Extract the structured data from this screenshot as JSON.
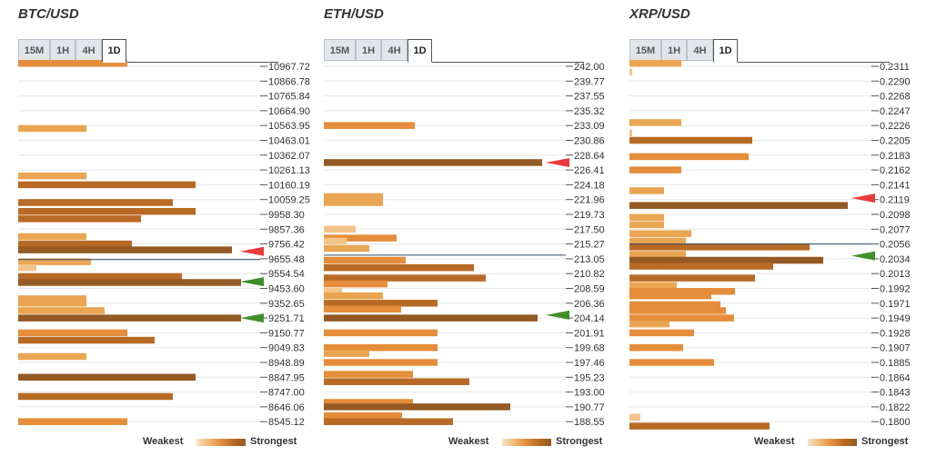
{
  "chart_data": [
    {
      "type": "bar",
      "title": "BTC/USD",
      "tabs": [
        "15M",
        "1H",
        "4H",
        "1D"
      ],
      "active_tab": "1D",
      "levels": [
        "10967.72",
        "10866.78",
        "10765.84",
        "10664.90",
        "10563.95",
        "10463.01",
        "10362.07",
        "10261.13",
        "10160.19",
        "10059.25",
        "9958.30",
        "9857.36",
        "9756.42",
        "9655.48",
        "9554.54",
        "9453.60",
        "9352.65",
        "9251.71",
        "9150.77",
        "9049.83",
        "8948.89",
        "8847.95",
        "8747.00",
        "8646.06",
        "8545.12"
      ],
      "bars": [
        {
          "row": 0,
          "offset": -0.2,
          "value": 120,
          "strength": 3
        },
        {
          "row": 4,
          "offset": 0.2,
          "value": 75,
          "strength": 2
        },
        {
          "row": 7,
          "offset": 0.4,
          "value": 75,
          "strength": 2
        },
        {
          "row": 8,
          "offset": 0.0,
          "value": 195,
          "strength": 4
        },
        {
          "row": 9,
          "offset": 0.2,
          "value": 170,
          "strength": 4
        },
        {
          "row": 10,
          "offset": -0.2,
          "value": 195,
          "strength": 4
        },
        {
          "row": 10,
          "offset": 0.3,
          "value": 135,
          "strength": 4
        },
        {
          "row": 12,
          "offset": -0.5,
          "value": 75,
          "strength": 2
        },
        {
          "row": 12,
          "offset": 0.0,
          "value": 125,
          "strength": 4
        },
        {
          "row": 12,
          "offset": 0.4,
          "value": 235,
          "strength": 5
        },
        {
          "row": 13,
          "offset": 0.2,
          "value": 80,
          "strength": 2
        },
        {
          "row": 14,
          "offset": -0.4,
          "value": 20,
          "strength": 1
        },
        {
          "row": 14,
          "offset": 0.2,
          "value": 180,
          "strength": 4
        },
        {
          "row": 14,
          "offset": 0.6,
          "value": 245,
          "strength": 5
        },
        {
          "row": 16,
          "offset": -0.3,
          "value": 75,
          "strength": 2
        },
        {
          "row": 16,
          "offset": 0.0,
          "value": 75,
          "strength": 2
        },
        {
          "row": 16,
          "offset": 0.5,
          "value": 95,
          "strength": 2
        },
        {
          "row": 17,
          "offset": 0.0,
          "value": 245,
          "strength": 5
        },
        {
          "row": 18,
          "offset": 0.0,
          "value": 120,
          "strength": 3
        },
        {
          "row": 18,
          "offset": 0.5,
          "value": 150,
          "strength": 4
        },
        {
          "row": 20,
          "offset": -0.4,
          "value": 75,
          "strength": 2
        },
        {
          "row": 21,
          "offset": 0.0,
          "value": 195,
          "strength": 5
        },
        {
          "row": 22,
          "offset": 0.3,
          "value": 170,
          "strength": 4
        },
        {
          "row": 24,
          "offset": 0.0,
          "value": 120,
          "strength": 3
        }
      ],
      "current_price_row": 13.05,
      "arrows": [
        {
          "row": 12.5,
          "color": "#e8393b"
        },
        {
          "row": 14.55,
          "color": "#3f8f2a"
        },
        {
          "row": 17.0,
          "color": "#3f8f2a"
        }
      ]
    },
    {
      "type": "bar",
      "title": "ETH/USD",
      "tabs": [
        "15M",
        "1H",
        "4H",
        "1D"
      ],
      "active_tab": "1D",
      "levels": [
        "242.00",
        "239.77",
        "237.55",
        "235.32",
        "233.09",
        "230.86",
        "228.64",
        "226.41",
        "224.18",
        "221.96",
        "219.73",
        "217.50",
        "215.27",
        "213.05",
        "210.82",
        "208.59",
        "206.36",
        "204.14",
        "201.91",
        "199.68",
        "197.46",
        "195.23",
        "193.00",
        "190.77",
        "188.55"
      ],
      "bars": [
        {
          "row": 4,
          "offset": 0.0,
          "value": 100,
          "strength": 3
        },
        {
          "row": 6,
          "offset": 0.5,
          "value": 240,
          "strength": 5
        },
        {
          "row": 9,
          "offset": -0.2,
          "value": 65,
          "strength": 2
        },
        {
          "row": 9,
          "offset": 0.2,
          "value": 65,
          "strength": 2
        },
        {
          "row": 11,
          "offset": 0.0,
          "value": 35,
          "strength": 1
        },
        {
          "row": 11,
          "offset": 0.6,
          "value": 80,
          "strength": 3
        },
        {
          "row": 12,
          "offset": -0.2,
          "value": 25,
          "strength": 1
        },
        {
          "row": 12,
          "offset": 0.3,
          "value": 50,
          "strength": 2
        },
        {
          "row": 13,
          "offset": 0.1,
          "value": 90,
          "strength": 3
        },
        {
          "row": 13,
          "offset": 0.6,
          "value": 165,
          "strength": 4
        },
        {
          "row": 14,
          "offset": 0.3,
          "value": 178,
          "strength": 4
        },
        {
          "row": 14,
          "offset": 0.7,
          "value": 70,
          "strength": 3
        },
        {
          "row": 15,
          "offset": 0.2,
          "value": 20,
          "strength": 1
        },
        {
          "row": 15,
          "offset": 0.5,
          "value": 65,
          "strength": 2
        },
        {
          "row": 16,
          "offset": 0.0,
          "value": 125,
          "strength": 4
        },
        {
          "row": 16,
          "offset": 0.4,
          "value": 85,
          "strength": 3
        },
        {
          "row": 17,
          "offset": 0.0,
          "value": 235,
          "strength": 5
        },
        {
          "row": 18,
          "offset": 0.0,
          "value": 125,
          "strength": 3
        },
        {
          "row": 19,
          "offset": 0.0,
          "value": 125,
          "strength": 3
        },
        {
          "row": 19,
          "offset": 0.4,
          "value": 50,
          "strength": 2
        },
        {
          "row": 20,
          "offset": 0.0,
          "value": 125,
          "strength": 3
        },
        {
          "row": 21,
          "offset": -0.2,
          "value": 98,
          "strength": 3
        },
        {
          "row": 21,
          "offset": 0.3,
          "value": 160,
          "strength": 4
        },
        {
          "row": 22,
          "offset": 0.7,
          "value": 98,
          "strength": 3
        },
        {
          "row": 23,
          "offset": 0.0,
          "value": 205,
          "strength": 5
        },
        {
          "row": 23,
          "offset": 0.6,
          "value": 86,
          "strength": 3
        },
        {
          "row": 24,
          "offset": 0.0,
          "value": 142,
          "strength": 4
        }
      ],
      "current_price_row": 12.75,
      "arrows": [
        {
          "row": 6.5,
          "color": "#e8393b"
        },
        {
          "row": 16.8,
          "color": "#3f8f2a"
        }
      ]
    },
    {
      "type": "bar",
      "title": "XRP/USD",
      "tabs": [
        "15M",
        "1H",
        "4H",
        "1D"
      ],
      "active_tab": "1D",
      "levels": [
        "0.2311",
        "0.2290",
        "0.2268",
        "0.2247",
        "0.2226",
        "0.2205",
        "0.2183",
        "0.2162",
        "0.2141",
        "0.2119",
        "0.2098",
        "0.2077",
        "0.2056",
        "0.2034",
        "0.2013",
        "0.1992",
        "0.1971",
        "0.1949",
        "0.1928",
        "0.1907",
        "0.1885",
        "0.1864",
        "0.1843",
        "0.1822",
        "0.1800"
      ],
      "bars": [
        {
          "row": 0,
          "offset": -0.2,
          "value": 57,
          "strength": 2
        },
        {
          "row": 0,
          "offset": 0.4,
          "value": 3,
          "strength": 1
        },
        {
          "row": 4,
          "offset": -0.2,
          "value": 57,
          "strength": 2
        },
        {
          "row": 4,
          "offset": 0.5,
          "value": 3,
          "strength": 1
        },
        {
          "row": 5,
          "offset": 0.0,
          "value": 135,
          "strength": 4
        },
        {
          "row": 6,
          "offset": 0.1,
          "value": 131,
          "strength": 3
        },
        {
          "row": 7,
          "offset": 0.0,
          "value": 57,
          "strength": 3
        },
        {
          "row": 9,
          "offset": -0.6,
          "value": 38,
          "strength": 2
        },
        {
          "row": 9,
          "offset": 0.4,
          "value": 240,
          "strength": 5
        },
        {
          "row": 10,
          "offset": 0.2,
          "value": 38,
          "strength": 2
        },
        {
          "row": 11,
          "offset": -0.3,
          "value": 38,
          "strength": 2
        },
        {
          "row": 11,
          "offset": 0.3,
          "value": 68,
          "strength": 2
        },
        {
          "row": 12,
          "offset": -0.2,
          "value": 62,
          "strength": 2
        },
        {
          "row": 12,
          "offset": 0.2,
          "value": 198,
          "strength": 4
        },
        {
          "row": 12,
          "offset": 0.7,
          "value": 62,
          "strength": 2
        },
        {
          "row": 13,
          "offset": 0.1,
          "value": 213,
          "strength": 5
        },
        {
          "row": 13,
          "offset": 0.5,
          "value": 158,
          "strength": 4
        },
        {
          "row": 14,
          "offset": 0.3,
          "value": 138,
          "strength": 4
        },
        {
          "row": 14,
          "offset": 0.8,
          "value": 52,
          "strength": 2
        },
        {
          "row": 15,
          "offset": 0.2,
          "value": 116,
          "strength": 3
        },
        {
          "row": 15,
          "offset": 0.5,
          "value": 90,
          "strength": 3
        },
        {
          "row": 16,
          "offset": 0.1,
          "value": 100,
          "strength": 3
        },
        {
          "row": 16,
          "offset": 0.5,
          "value": 106,
          "strength": 3
        },
        {
          "row": 17,
          "offset": 0.0,
          "value": 115,
          "strength": 3
        },
        {
          "row": 17,
          "offset": 0.4,
          "value": 44,
          "strength": 2
        },
        {
          "row": 18,
          "offset": 0.0,
          "value": 71,
          "strength": 3
        },
        {
          "row": 19,
          "offset": 0.0,
          "value": 59,
          "strength": 3
        },
        {
          "row": 20,
          "offset": 0.0,
          "value": 93,
          "strength": 3
        },
        {
          "row": 24,
          "offset": -0.3,
          "value": 12,
          "strength": 1
        },
        {
          "row": 24,
          "offset": 0.3,
          "value": 154,
          "strength": 4
        }
      ],
      "current_price_row": 12.0,
      "arrows": [
        {
          "row": 8.9,
          "color": "#e8393b"
        },
        {
          "row": 12.8,
          "color": "#3f8f2a"
        }
      ]
    }
  ],
  "legend": {
    "weakest": "Weakest",
    "strongest": "Strongest"
  },
  "strength_colors": [
    "#f9e3c8",
    "#f2c48a",
    "#eaa552",
    "#e58d3a",
    "#b86a25",
    "#955a24"
  ]
}
